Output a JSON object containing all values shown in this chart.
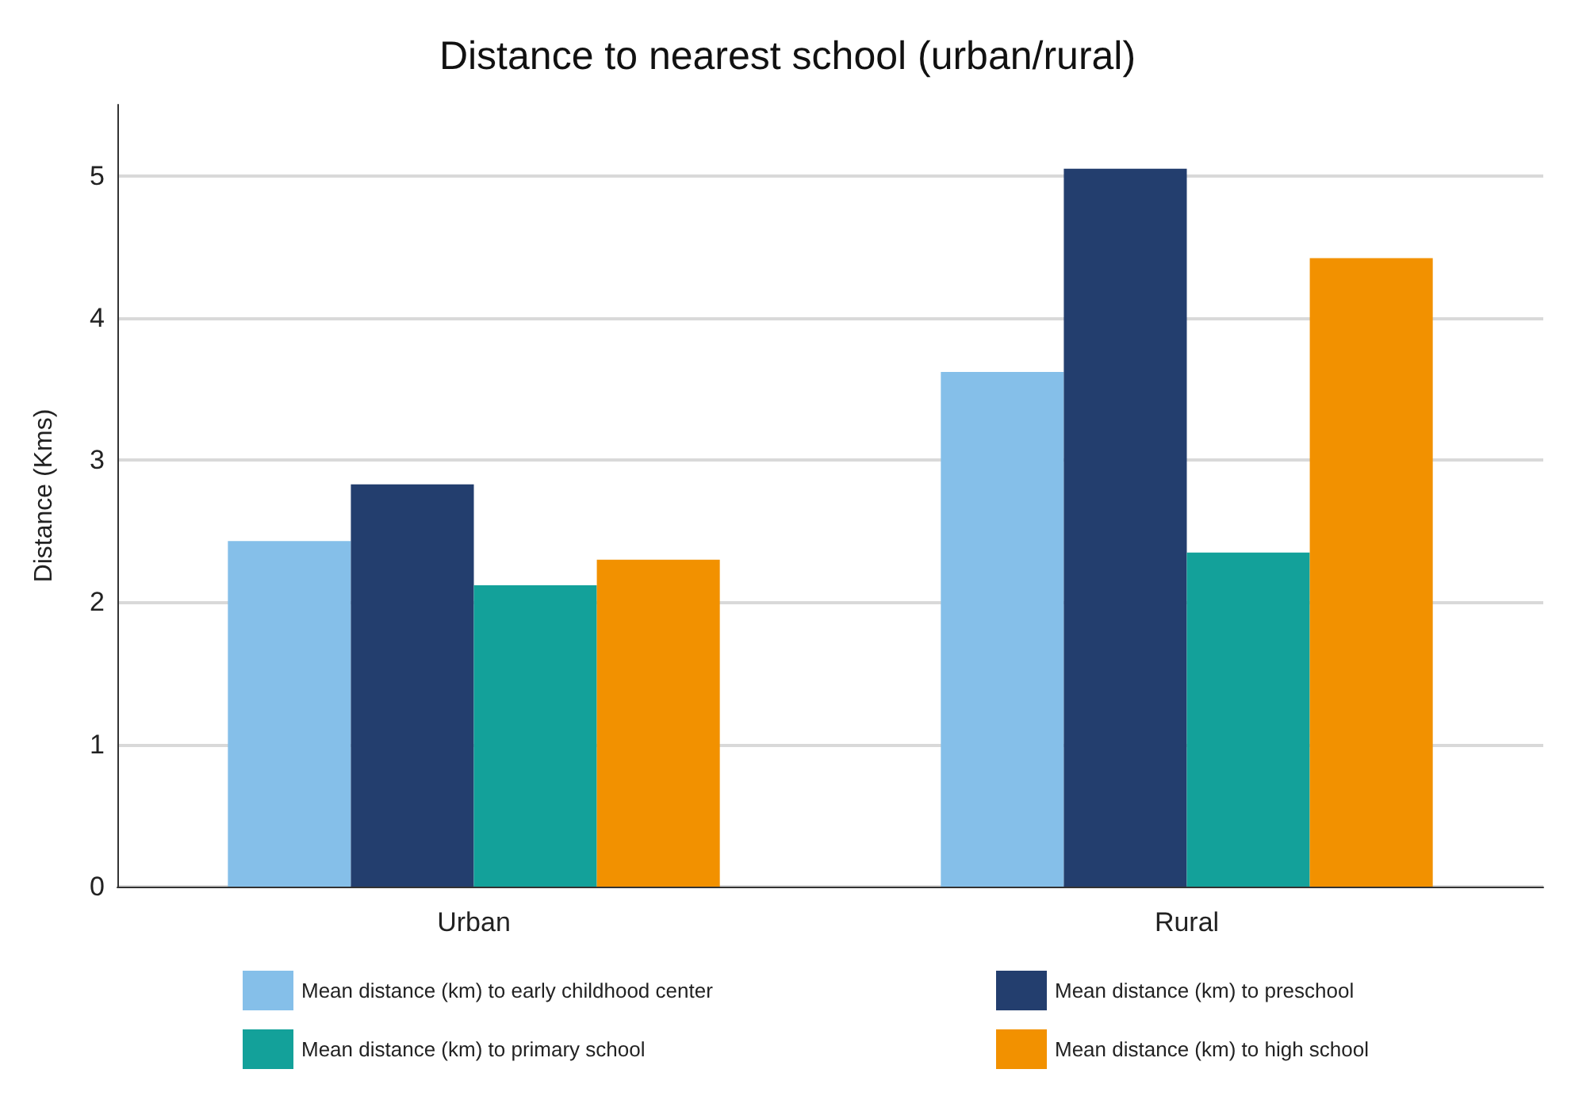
{
  "chart_data": {
    "type": "bar",
    "title": "Distance to nearest school (urban/rural)",
    "ylabel": "Distance (Kms)",
    "categories": [
      "Urban",
      "Rural"
    ],
    "series": [
      {
        "name": "Mean distance (km) to early childhood center",
        "color": "#85bfe9",
        "values": [
          2.43,
          3.62
        ]
      },
      {
        "name": "Mean distance (km) to preschool",
        "color": "#233e6e",
        "values": [
          2.83,
          5.05
        ]
      },
      {
        "name": "Mean distance (km) to primary school",
        "color": "#13a19a",
        "values": [
          2.12,
          2.35
        ]
      },
      {
        "name": "Mean distance (km) to high school",
        "color": "#f29100",
        "values": [
          2.3,
          4.42
        ]
      }
    ],
    "ylim": [
      0,
      5.5
    ],
    "yticks": [
      0,
      1,
      2,
      3,
      4,
      5
    ],
    "grid": "y",
    "legend": "bottom"
  }
}
